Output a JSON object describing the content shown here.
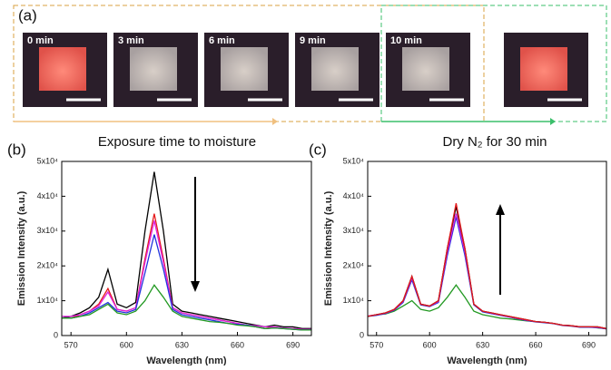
{
  "panel_a": {
    "label": "(a)",
    "images": [
      {
        "label": "0 min"
      },
      {
        "label": "3 min"
      },
      {
        "label": "6 min"
      },
      {
        "label": "9 min"
      },
      {
        "label": "10 min"
      },
      {
        "label": null
      }
    ],
    "caption_left": "Exposure time to moisture",
    "caption_right": "Dry N₂ for 30 min"
  },
  "chart_data": [
    {
      "type": "line",
      "label": "(b)",
      "xlabel": "Wavelength (nm)",
      "ylabel": "Emission Intensity (a.u.)",
      "xlim": [
        565,
        700
      ],
      "xticks": [
        570,
        600,
        630,
        660,
        690
      ],
      "ylim": [
        0,
        50000
      ],
      "yticks": [
        0,
        {
          "value": 10000,
          "label": "1x10⁴"
        },
        {
          "value": 20000,
          "label": "2x10⁴"
        },
        {
          "value": 30000,
          "label": "3x10⁴"
        },
        {
          "value": 40000,
          "label": "4x10⁴"
        },
        {
          "value": 50000,
          "label": "5x10⁴"
        }
      ],
      "x": [
        565,
        570,
        575,
        580,
        585,
        590,
        595,
        600,
        605,
        610,
        615,
        620,
        625,
        630,
        635,
        640,
        645,
        650,
        655,
        660,
        665,
        670,
        675,
        680,
        685,
        690,
        695,
        700
      ],
      "series": [
        {
          "color": "#000000",
          "values": [
            5000,
            5500,
            6500,
            8000,
            11000,
            19000,
            9000,
            8000,
            9500,
            30000,
            47000,
            30000,
            9000,
            7000,
            6500,
            6000,
            5500,
            5000,
            4500,
            4000,
            3500,
            3000,
            2500,
            3000,
            2500,
            2500,
            2000,
            2000
          ]
        },
        {
          "color": "#e41a1c",
          "values": [
            5000,
            5000,
            6000,
            7000,
            9000,
            13500,
            7500,
            7000,
            8000,
            22000,
            35000,
            22000,
            8000,
            6500,
            6000,
            5500,
            5000,
            4500,
            4000,
            3500,
            3000,
            2500,
            2000,
            2500,
            2000,
            2000,
            1800,
            1800
          ]
        },
        {
          "color": "#e020e0",
          "values": [
            5500,
            5500,
            6000,
            7000,
            8500,
            12500,
            7500,
            7000,
            8000,
            21000,
            33000,
            21000,
            8000,
            6500,
            6000,
            5500,
            5000,
            4500,
            4000,
            3500,
            3000,
            2800,
            2500,
            2500,
            2200,
            2000,
            1800,
            1800
          ]
        },
        {
          "color": "#2233dd",
          "values": [
            5000,
            5000,
            5500,
            6500,
            8000,
            9500,
            7000,
            6500,
            7500,
            18000,
            29000,
            19000,
            7500,
            6000,
            5500,
            5000,
            4500,
            4000,
            3500,
            3200,
            3000,
            2500,
            2000,
            2200,
            2000,
            1800,
            1600,
            1600
          ]
        },
        {
          "color": "#229922",
          "values": [
            5000,
            5000,
            5500,
            6000,
            7500,
            9000,
            6500,
            6000,
            7000,
            10000,
            14500,
            11000,
            7000,
            5500,
            5000,
            4500,
            4000,
            3800,
            3500,
            3000,
            2800,
            2500,
            2000,
            2200,
            2000,
            1800,
            1600,
            1600
          ]
        }
      ]
    },
    {
      "type": "line",
      "label": "(c)",
      "xlabel": "Wavelength (nm)",
      "ylabel": "Emission Intensity (a.u.)",
      "xlim": [
        565,
        700
      ],
      "xticks": [
        570,
        600,
        630,
        660,
        690
      ],
      "ylim": [
        0,
        50000
      ],
      "yticks": [
        0,
        {
          "value": 10000,
          "label": "1x10⁴"
        },
        {
          "value": 20000,
          "label": "2x10⁴"
        },
        {
          "value": 30000,
          "label": "3x10⁴"
        },
        {
          "value": 40000,
          "label": "4x10⁴"
        },
        {
          "value": 50000,
          "label": "5x10⁴"
        }
      ],
      "x": [
        565,
        570,
        575,
        580,
        585,
        590,
        595,
        600,
        605,
        610,
        615,
        620,
        625,
        630,
        635,
        640,
        645,
        650,
        655,
        660,
        665,
        670,
        675,
        680,
        685,
        690,
        695,
        700
      ],
      "series": [
        {
          "color": "#229922",
          "values": [
            5500,
            6000,
            6200,
            7000,
            8500,
            10000,
            7500,
            7000,
            8000,
            11000,
            14500,
            11000,
            7000,
            6000,
            5500,
            5000,
            4800,
            4500,
            4200,
            4000,
            3800,
            3500,
            3000,
            2800,
            2500,
            2500,
            2200,
            2000
          ]
        },
        {
          "color": "#2233dd",
          "values": [
            5500,
            5800,
            6300,
            7300,
            9500,
            16000,
            8800,
            8300,
            9500,
            23000,
            34000,
            23000,
            8800,
            6800,
            6300,
            5800,
            5300,
            4800,
            4300,
            3900,
            3700,
            3400,
            2900,
            2700,
            2400,
            2400,
            2300,
            1900
          ]
        },
        {
          "color": "#e020e0",
          "values": [
            5600,
            6000,
            6400,
            7400,
            9800,
            16500,
            9000,
            8400,
            9800,
            24000,
            35000,
            24000,
            9000,
            7000,
            6400,
            5900,
            5400,
            4900,
            4400,
            4000,
            3800,
            3500,
            3000,
            2800,
            2500,
            2500,
            2400,
            2000
          ]
        },
        {
          "color": "#000000",
          "values": [
            5500,
            6000,
            6500,
            7500,
            10000,
            17000,
            9000,
            8500,
            10000,
            25000,
            37000,
            25000,
            9000,
            7000,
            6500,
            6000,
            5500,
            5000,
            4500,
            4000,
            3800,
            3500,
            3000,
            2800,
            2500,
            2500,
            2500,
            2000
          ]
        },
        {
          "color": "#e41a1c",
          "values": [
            5500,
            6000,
            6500,
            7500,
            10000,
            17000,
            9000,
            8500,
            10000,
            25000,
            38000,
            25000,
            9000,
            7000,
            6500,
            6000,
            5500,
            5000,
            4500,
            4000,
            3800,
            3500,
            3000,
            2800,
            2500,
            2500,
            2500,
            2000
          ]
        }
      ]
    }
  ]
}
